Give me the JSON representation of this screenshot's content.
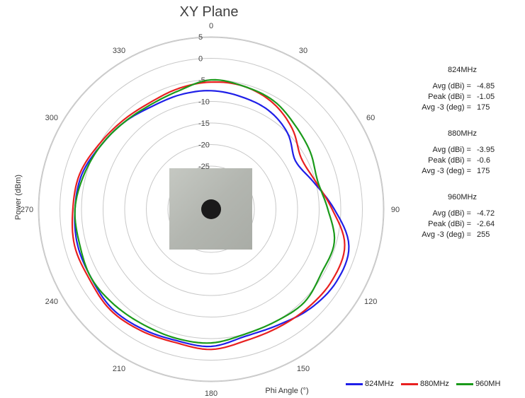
{
  "chart_data": {
    "type": "polar-line",
    "title": "XY Plane",
    "radial_axis_label": "Power (dBm)",
    "angle_axis_label": "Phi  Angle (°)",
    "radial_ticks": [
      5,
      0,
      -5,
      -10,
      -15,
      -20,
      -25
    ],
    "angle_ticks": [
      0,
      30,
      60,
      90,
      120,
      150,
      180,
      210,
      240,
      270,
      300,
      330
    ],
    "grid": true,
    "legend_position": "bottom-right",
    "angles_deg": [
      0,
      15,
      30,
      45,
      60,
      75,
      90,
      105,
      120,
      135,
      150,
      165,
      180,
      195,
      210,
      225,
      240,
      255,
      270,
      285,
      300,
      315,
      330,
      345
    ],
    "series": [
      {
        "name": "824MHz",
        "color": "#1f1fe8",
        "values": [
          -7.5,
          -8,
          -8.5,
          -10,
          -12.5,
          -10.5,
          -6.5,
          -2,
          -1.5,
          -2.5,
          -4,
          -4.5,
          -3.2,
          -3.5,
          -3,
          -2.5,
          -3,
          -3,
          -3.5,
          -4,
          -5.5,
          -6.5,
          -7.5,
          -7.5
        ]
      },
      {
        "name": "880MHz",
        "color": "#e82020",
        "values": [
          -5.5,
          -5.5,
          -6.5,
          -8.5,
          -11,
          -10,
          -7,
          -3,
          -2.5,
          -3,
          -3.5,
          -3.5,
          -2.5,
          -3,
          -2.5,
          -2,
          -2.5,
          -2.3,
          -3,
          -3.5,
          -5,
          -6,
          -6.5,
          -6
        ]
      },
      {
        "name": "960MH",
        "color": "#1a9a1a",
        "values": [
          -5,
          -5.5,
          -6,
          -7.5,
          -8.5,
          -9.5,
          -8,
          -5.5,
          -5.5,
          -4.5,
          -5,
          -5,
          -4,
          -4,
          -4,
          -3.5,
          -3,
          -3.5,
          -3.5,
          -4.5,
          -5.5,
          -6.5,
          -7,
          -6.5
        ]
      }
    ]
  },
  "stats": [
    {
      "freq": "824MHz",
      "rows": [
        {
          "key": "Avg (dBi) =",
          "val": "-4.85"
        },
        {
          "key": "Peak (dBi) =",
          "val": "-1.05"
        },
        {
          "key": "Avg -3 (deg) =",
          "val": "175"
        }
      ]
    },
    {
      "freq": "880MHz",
      "rows": [
        {
          "key": "Avg (dBi) =",
          "val": "-3.95"
        },
        {
          "key": "Peak (dBi) =",
          "val": "-0.6"
        },
        {
          "key": "Avg -3 (deg) =",
          "val": "175"
        }
      ]
    },
    {
      "freq": "960MHz",
      "rows": [
        {
          "key": "Avg (dBi) =",
          "val": "-4.72"
        },
        {
          "key": "Peak (dBi) =",
          "val": "-2.64"
        },
        {
          "key": "Avg -3 (deg) =",
          "val": "255"
        }
      ]
    }
  ]
}
